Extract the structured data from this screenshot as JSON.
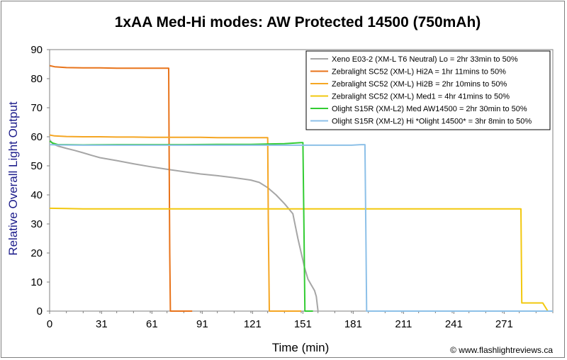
{
  "chart_data": {
    "type": "line",
    "title": "1xAA Med-Hi modes: AW Protected 14500 (750mAh)",
    "xlabel": "Time (min)",
    "ylabel": "Relative Overall Light Output",
    "xlim": [
      0,
      300
    ],
    "ylim": [
      0,
      90
    ],
    "xticks": [
      0,
      31,
      61,
      91,
      121,
      151,
      181,
      211,
      241,
      271
    ],
    "yticks": [
      0,
      10,
      20,
      30,
      40,
      50,
      60,
      70,
      80,
      90
    ],
    "grid": false,
    "legend_position": "top-right",
    "credit": "© www.flashlightreviews.ca",
    "series": [
      {
        "name": "Xeno E03-2 (XM-L T6 Neutral) Lo = 2hr 33min to 50%",
        "color": "#a6a6a6",
        "x": [
          0,
          2,
          5,
          10,
          15,
          20,
          25,
          30,
          40,
          50,
          60,
          70,
          80,
          90,
          100,
          110,
          120,
          125,
          130,
          135,
          140,
          145,
          148,
          150,
          152,
          154,
          156,
          157,
          158,
          159,
          160
        ],
        "y": [
          59,
          57.5,
          56.8,
          56,
          55.3,
          54.5,
          53.6,
          52.8,
          51.8,
          50.7,
          49.7,
          48.8,
          48,
          47.2,
          46.6,
          45.9,
          45.1,
          44.3,
          42.5,
          40,
          37,
          33.5,
          25,
          20,
          15,
          11,
          9,
          8,
          7,
          5,
          0
        ]
      },
      {
        "name": "Zebralight SC52 (XM-L) Hi2A = 1hr 11mins to 50%",
        "color": "#e8731a",
        "x": [
          0,
          3,
          10,
          20,
          30,
          40,
          50,
          60,
          65,
          71,
          71.2,
          71.6,
          72,
          76,
          80,
          85
        ],
        "y": [
          84.5,
          84.1,
          83.8,
          83.7,
          83.7,
          83.6,
          83.6,
          83.6,
          83.6,
          83.6,
          60,
          20,
          0,
          0,
          0,
          0
        ]
      },
      {
        "name": "Zebralight SC52 (XM-L) Hi2B = 2hr 10mins to 50%",
        "color": "#f5a623",
        "x": [
          0,
          3,
          10,
          20,
          30,
          40,
          50,
          60,
          70,
          80,
          90,
          100,
          110,
          120,
          125,
          130,
          130.4,
          131,
          136,
          145,
          150
        ],
        "y": [
          60.6,
          60.3,
          60.1,
          60,
          60,
          59.9,
          59.9,
          59.8,
          59.8,
          59.8,
          59.8,
          59.7,
          59.7,
          59.7,
          59.7,
          59.7,
          30,
          0,
          0,
          0,
          0
        ]
      },
      {
        "name": "Zebralight SC52 (XM-L) Med1 = 4hr 41mins to 50%",
        "color": "#f2c80f",
        "x": [
          0,
          10,
          20,
          40,
          60,
          90,
          120,
          150,
          180,
          210,
          240,
          270,
          281,
          281.5,
          285,
          290,
          294,
          297
        ],
        "y": [
          35.4,
          35.3,
          35.2,
          35.2,
          35.2,
          35.2,
          35.2,
          35.2,
          35.2,
          35.2,
          35.2,
          35.2,
          35.2,
          2.8,
          2.8,
          2.8,
          2.8,
          0
        ]
      },
      {
        "name": "Olight S15R (XM-L2) Med AW14500 = 2hr 30min to 50%",
        "color": "#33cc33",
        "x": [
          0,
          2,
          5,
          10,
          20,
          40,
          60,
          80,
          100,
          120,
          140,
          145,
          150,
          151,
          151.6,
          152.2,
          153,
          157
        ],
        "y": [
          58.5,
          57.8,
          57.3,
          57.3,
          57.2,
          57.3,
          57.3,
          57.3,
          57.4,
          57.4,
          57.6,
          57.8,
          58,
          58,
          30,
          0,
          0,
          0
        ]
      },
      {
        "name": "Olight S15R (XM-L2) Hi *Olight 14500* = 3hr 8min to 50%",
        "color": "#8cc0e8",
        "x": [
          0,
          5,
          20,
          40,
          60,
          90,
          120,
          150,
          180,
          186,
          188,
          188.5,
          189,
          210,
          240,
          270,
          300
        ],
        "y": [
          57.3,
          57.2,
          57.1,
          57.1,
          57.1,
          57.1,
          57.1,
          57.1,
          57.1,
          57.3,
          57.3,
          30,
          0,
          0,
          0,
          0,
          0
        ]
      }
    ]
  }
}
